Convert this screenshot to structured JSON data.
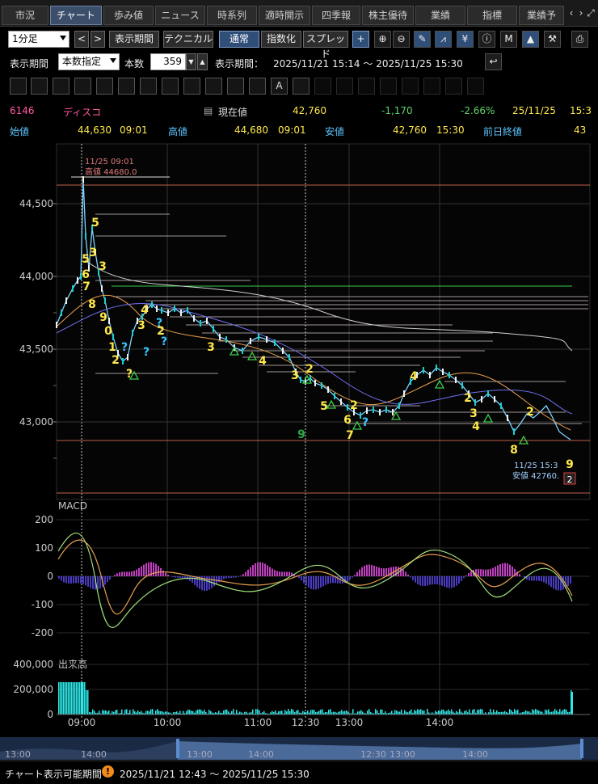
{
  "tabs": {
    "items": [
      "市況",
      "チャート",
      "歩み値",
      "ニュース",
      "時系列",
      "適時開示",
      "四季報",
      "株主優待",
      "業績",
      "指標",
      "業績予"
    ],
    "active": 1
  },
  "toolbar": {
    "interval": "1分足",
    "period_button": "表示期間",
    "technical_button": "テクニカル",
    "normal_button": "通常",
    "index_button": "指数化",
    "spread_button": "スプレッド"
  },
  "period_bar": {
    "label": "表示期間",
    "mode": "本数指定",
    "count_label": "本数",
    "count_value": "359",
    "range_label": "表示期間：",
    "range_value": "2025/11/21 15:14 ～ 2025/11/25 15:30"
  },
  "quote": {
    "code": "6146",
    "name": "ディスコ",
    "current_label": "現在値",
    "current_value": "42,760",
    "change": "-1,170",
    "change_pct": "-2.66%",
    "datetime": "25/11/25",
    "time_cut": "15:3",
    "open_label": "始値",
    "open_value": "44,630",
    "open_time": "09:01",
    "high_label": "高値",
    "high_value": "44,680",
    "high_time": "09:01",
    "low_label": "安値",
    "low_value": "42,760",
    "low_time": "15:30",
    "prev_label": "前日終値",
    "prev_value": "43"
  },
  "chart_data": {
    "type": "line",
    "price_axis": {
      "ticks": [
        "44,500",
        "44,000",
        "43,500",
        "43,000"
      ],
      "values": [
        44500,
        44000,
        43500,
        43000
      ]
    },
    "time_axis": [
      "09:00",
      "10:00",
      "11:00",
      "12:30",
      "13:00",
      "14:00"
    ],
    "high_annotation": {
      "time": "11/25 09:01",
      "text": "高値 44680.0"
    },
    "low_annotation": {
      "time": "11/25 15:3",
      "text": "安値 42760."
    },
    "counts": [
      {
        "t": "5",
        "c": "y"
      },
      {
        "t": "5",
        "c": "y"
      },
      {
        "t": "3",
        "c": "y"
      },
      {
        "t": "6",
        "c": "y"
      },
      {
        "t": "3",
        "c": "y"
      },
      {
        "t": "7",
        "c": "y"
      },
      {
        "t": "8",
        "c": "y"
      },
      {
        "t": "9",
        "c": "y"
      },
      {
        "t": "0",
        "c": "y"
      },
      {
        "t": "1",
        "c": "y"
      },
      {
        "t": "?",
        "c": "b"
      },
      {
        "t": "2",
        "c": "y"
      },
      {
        "t": "?",
        "c": "b"
      },
      {
        "t": "?",
        "c": "y"
      },
      {
        "t": "4",
        "c": "y"
      },
      {
        "t": "3",
        "c": "y"
      },
      {
        "t": "?",
        "c": "b"
      },
      {
        "t": "2",
        "c": "y"
      },
      {
        "t": "?",
        "c": "b"
      },
      {
        "t": "3",
        "c": "y"
      },
      {
        "t": "4",
        "c": "y"
      },
      {
        "t": "3",
        "c": "y"
      },
      {
        "t": "2",
        "c": "y"
      },
      {
        "t": "5",
        "c": "y"
      },
      {
        "t": "2",
        "c": "y"
      },
      {
        "t": "6",
        "c": "y"
      },
      {
        "t": "7",
        "c": "y"
      },
      {
        "t": "?",
        "c": "b"
      },
      {
        "t": "9",
        "c": "g"
      },
      {
        "t": "4",
        "c": "y"
      },
      {
        "t": "2",
        "c": "y"
      },
      {
        "t": "3",
        "c": "y"
      },
      {
        "t": "4",
        "c": "y"
      },
      {
        "t": "2",
        "c": "y"
      },
      {
        "t": "8",
        "c": "y"
      },
      {
        "t": "9",
        "c": "y"
      }
    ],
    "low_badge": "2",
    "macd": {
      "label": "MACD",
      "ticks": [
        "200",
        "100",
        "0",
        "-100",
        "-200"
      ],
      "values": [
        200,
        100,
        0,
        -100,
        -200
      ]
    },
    "volume": {
      "label": "出来高",
      "ticks": [
        "400,000",
        "200,000",
        "0"
      ],
      "values": [
        400000,
        200000,
        0
      ]
    },
    "overview_ticks": [
      "13:00",
      "14:00",
      "13:00",
      "14:00",
      "12:30",
      "13:00",
      "14:00"
    ]
  },
  "footer": {
    "label": "チャート表示可能期間",
    "range": "2025/11/21 12:43 ～ 2025/11/25 15:30"
  }
}
